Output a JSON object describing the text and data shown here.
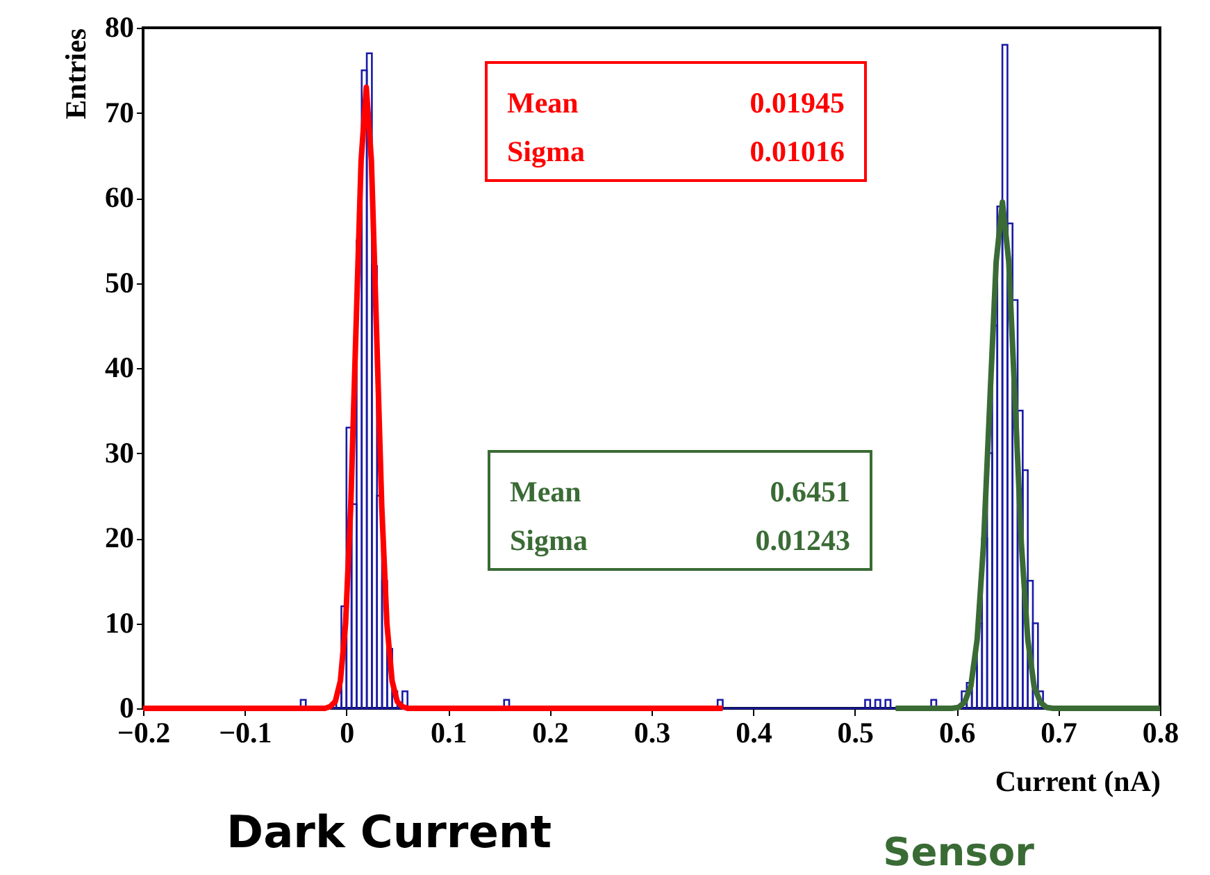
{
  "chart_data": {
    "type": "histogram",
    "bins": [
      -0.2,
      -0.045,
      -0.04,
      -0.01,
      -0.005,
      0,
      0.005,
      0.01,
      0.015,
      0.02,
      0.025,
      0.03,
      0.035,
      0.04,
      0.045,
      0.05,
      0.055,
      0.06,
      0.155,
      0.16,
      0.365,
      0.37,
      0.51,
      0.515,
      0.52,
      0.525,
      0.53,
      0.535,
      0.575,
      0.58,
      0.605,
      0.61,
      0.615,
      0.62,
      0.625,
      0.63,
      0.635,
      0.64,
      0.645,
      0.65,
      0.655,
      0.66,
      0.665,
      0.67,
      0.675,
      0.68,
      0.685,
      0.8
    ],
    "values": [
      0,
      1,
      0,
      2,
      12,
      33,
      24,
      55,
      75,
      77,
      52,
      25,
      15,
      7,
      2,
      0,
      2,
      0,
      1,
      0,
      1,
      0,
      1,
      0,
      1,
      0,
      1,
      0,
      1,
      0,
      2,
      3,
      5,
      10,
      20,
      30,
      45,
      59,
      78,
      57,
      48,
      35,
      28,
      15,
      10,
      2,
      0
    ],
    "color": "#1a1aa6",
    "series": [
      {
        "type": "line",
        "color": "#ff0000",
        "x": [
          -0.2,
          -0.0212,
          -0.0161,
          -0.011,
          -0.006,
          -0.0009,
          0.0042,
          0.0093,
          0.0144,
          0.0195,
          0.0245,
          0.0296,
          0.0347,
          0.0398,
          0.0449,
          0.0499,
          0.055,
          0.0601,
          0.37
        ],
        "values": [
          0,
          0,
          0.2,
          0.8,
          3.2,
          9.9,
          23.7,
          44.3,
          64.4,
          73,
          64.4,
          44.3,
          23.7,
          9.9,
          3.2,
          0.8,
          0.2,
          0,
          0
        ]
      },
      {
        "type": "line",
        "color": "#3a6b35",
        "x": [
          0.54,
          0.5954,
          0.6016,
          0.6078,
          0.614,
          0.6202,
          0.6265,
          0.6327,
          0.6389,
          0.6451,
          0.6513,
          0.6575,
          0.6637,
          0.67,
          0.6762,
          0.6824,
          0.6886,
          0.6948,
          0.8
        ],
        "values": [
          0,
          0,
          0.1,
          0.7,
          2.6,
          8.1,
          19.3,
          36.1,
          52.5,
          59.5,
          52.5,
          36.1,
          19.3,
          8.1,
          2.6,
          0.7,
          0.1,
          0,
          0
        ]
      }
    ],
    "xlim": [
      -0.2,
      0.8
    ],
    "ylim": [
      0,
      80
    ],
    "xticks": [
      -0.2,
      -0.1,
      0,
      0.1,
      0.2,
      0.3,
      0.4,
      0.5,
      0.6,
      0.7,
      0.8
    ],
    "yticks": [
      0,
      10,
      20,
      30,
      40,
      50,
      60,
      70,
      80
    ],
    "xlabel": "Current (nA)",
    "ylabel": "Entries",
    "annotations": [
      "Mean",
      "0.01945",
      "Sigma",
      "0.01016",
      "Mean",
      "0.6451",
      "Sigma",
      "0.01243",
      "Dark Current",
      "Sensor"
    ]
  }
}
